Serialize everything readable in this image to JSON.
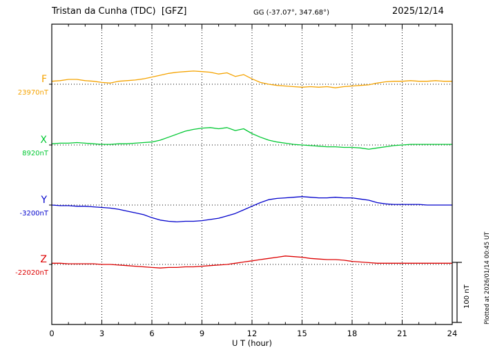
{
  "header": {
    "station_title": "Tristan da Cunha (TDC)  [GFZ]",
    "coords": "GG (-37.07°, 347.68°)",
    "date": "2025/12/14"
  },
  "plotted_note": "Plotted at 2026/01/14 00:45 UT",
  "scale_bar": {
    "label": "100 nT",
    "value_nT": 100
  },
  "chart_data": {
    "type": "line",
    "title": "Tristan da Cunha (TDC) [GFZ] magnetogram 2025/12/14",
    "xlabel": "U T (hour)",
    "x_unit": "UT hour",
    "x_range": [
      0,
      24
    ],
    "x_ticks": [
      0,
      3,
      6,
      9,
      12,
      15,
      18,
      21,
      24
    ],
    "grid": {
      "vertical_dotted_every_hours": 3,
      "horizontal_dotted_baselines": true
    },
    "amplitude_unit": "nT offset from component baseline",
    "series": [
      {
        "name": "F",
        "color": "#F5A300",
        "baseline_label": "23970nT",
        "baseline_nT": 23970,
        "x_start": 0,
        "x_step": 0.5,
        "values_dnT": [
          5,
          6,
          8,
          8,
          6,
          5,
          3,
          2,
          5,
          6,
          7,
          9,
          12,
          15,
          18,
          20,
          21,
          22,
          21,
          20,
          17,
          19,
          13,
          16,
          9,
          3,
          0,
          -2,
          -3,
          -4,
          -5,
          -4,
          -5,
          -4,
          -6,
          -4,
          -3,
          -2,
          -1,
          2,
          4,
          5,
          5,
          6,
          5,
          5,
          6,
          5,
          5
        ]
      },
      {
        "name": "X",
        "color": "#00C832",
        "baseline_label": "8920nT",
        "baseline_nT": 8920,
        "x_start": 0,
        "x_step": 0.5,
        "values_dnT": [
          2,
          3,
          3,
          4,
          3,
          2,
          1,
          1,
          2,
          2,
          3,
          4,
          5,
          8,
          13,
          18,
          23,
          26,
          28,
          29,
          27,
          29,
          24,
          27,
          19,
          13,
          8,
          5,
          3,
          1,
          0,
          -1,
          -2,
          -3,
          -3,
          -4,
          -4,
          -5,
          -7,
          -5,
          -3,
          -1,
          0,
          1,
          1,
          1,
          1,
          1,
          1
        ]
      },
      {
        "name": "Y",
        "color": "#0000CC",
        "baseline_label": "-3200nT",
        "baseline_nT": -3200,
        "x_start": 0,
        "x_step": 0.5,
        "values_dnT": [
          0,
          -1,
          -1,
          -2,
          -2,
          -3,
          -4,
          -5,
          -7,
          -10,
          -13,
          -16,
          -21,
          -25,
          -27,
          -28,
          -27,
          -27,
          -26,
          -24,
          -22,
          -18,
          -14,
          -8,
          -2,
          4,
          9,
          11,
          12,
          13,
          14,
          13,
          12,
          12,
          13,
          12,
          12,
          10,
          8,
          4,
          2,
          1,
          1,
          1,
          1,
          0,
          0,
          0,
          0
        ]
      },
      {
        "name": "Z",
        "color": "#DD0000",
        "baseline_label": "-22020nT",
        "baseline_nT": -22020,
        "x_start": 0,
        "x_step": 0.5,
        "values_dnT": [
          2,
          2,
          1,
          1,
          1,
          1,
          0,
          0,
          -1,
          -2,
          -3,
          -4,
          -5,
          -6,
          -5,
          -5,
          -4,
          -4,
          -3,
          -2,
          -1,
          0,
          2,
          4,
          6,
          8,
          10,
          12,
          14,
          13,
          12,
          10,
          9,
          8,
          8,
          7,
          5,
          4,
          3,
          2,
          2,
          2,
          2,
          2,
          2,
          2,
          2,
          2,
          2
        ]
      }
    ]
  }
}
